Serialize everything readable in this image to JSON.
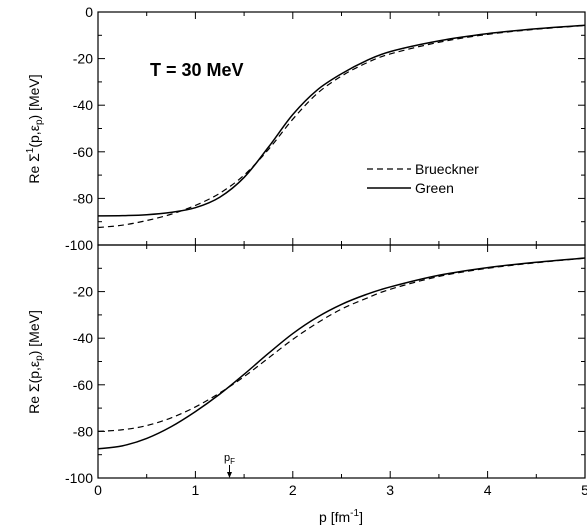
{
  "chart_data": [
    {
      "type": "line",
      "panel": "top",
      "ylabel_main": "Re Σ",
      "ylabel_sup": "1",
      "ylabel_args": "(p,ε",
      "ylabel_argsub": "p",
      "ylabel_close": ")",
      "ylabel_units": " [MeV]",
      "xlim": [
        0,
        5
      ],
      "ylim": [
        -100,
        0
      ],
      "xticks": [
        0,
        1,
        2,
        3,
        4,
        5
      ],
      "yticks": [
        0,
        -20,
        -40,
        -60,
        -80,
        -100
      ],
      "ytick_labels": [
        "0",
        "-20",
        "-40",
        "-60",
        "-80",
        "-100"
      ],
      "annotation": "T = 30 MeV",
      "legend_placement": "middle-right",
      "series": [
        {
          "name": "Brueckner",
          "style": "dashed",
          "x": [
            0,
            0.25,
            0.5,
            0.75,
            1.0,
            1.25,
            1.5,
            1.75,
            2.0,
            2.25,
            2.5,
            2.75,
            3.0,
            3.5,
            4.0,
            4.5,
            5.0
          ],
          "y": [
            -92.5,
            -91.5,
            -89.5,
            -86.8,
            -83,
            -77.8,
            -70,
            -59,
            -46,
            -35,
            -27.5,
            -22,
            -18,
            -13,
            -9.6,
            -7.4,
            -5.8
          ]
        },
        {
          "name": "Green",
          "style": "solid",
          "x": [
            0,
            0.25,
            0.5,
            0.75,
            1.0,
            1.25,
            1.5,
            1.75,
            2.0,
            2.25,
            2.5,
            2.75,
            3.0,
            3.5,
            4.0,
            4.5,
            5.0
          ],
          "y": [
            -87.5,
            -87.4,
            -87,
            -86,
            -84,
            -79.5,
            -71,
            -58,
            -44,
            -33.5,
            -26.5,
            -21,
            -17,
            -12.4,
            -9.3,
            -7.2,
            -5.7
          ]
        }
      ]
    },
    {
      "type": "line",
      "panel": "bottom",
      "xlabel_main": "p [fm",
      "xlabel_sup": "-1",
      "xlabel_close": "]",
      "ylabel_main": "Re Σ(p,ε",
      "ylabel_sub": "p",
      "ylabel_close": ") [MeV]",
      "xlim": [
        0,
        5
      ],
      "ylim": [
        -100,
        0
      ],
      "xticks": [
        0,
        1,
        2,
        3,
        4,
        5
      ],
      "xtick_labels": [
        "0",
        "1",
        "2",
        "3",
        "4",
        "5"
      ],
      "yticks": [
        -20,
        -40,
        -60,
        -80,
        -100
      ],
      "ytick_labels": [
        "-20",
        "-40",
        "-60",
        "-80",
        "-100"
      ],
      "pf_label": "p",
      "pf_sub": "F",
      "pf_x": 1.35,
      "series": [
        {
          "name": "Brueckner",
          "style": "dashed",
          "x": [
            0,
            0.25,
            0.5,
            0.75,
            1.0,
            1.25,
            1.5,
            1.75,
            2.0,
            2.25,
            2.5,
            2.75,
            3.0,
            3.5,
            4.0,
            4.5,
            5.0
          ],
          "y": [
            -80,
            -79.3,
            -77.5,
            -74.2,
            -69.5,
            -63.5,
            -56.5,
            -48.5,
            -40.5,
            -33.5,
            -27.5,
            -23,
            -19,
            -13.5,
            -10,
            -7.6,
            -5.7
          ]
        },
        {
          "name": "Green",
          "style": "solid",
          "x": [
            0,
            0.25,
            0.5,
            0.75,
            1.0,
            1.25,
            1.5,
            1.75,
            2.0,
            2.25,
            2.5,
            2.75,
            3.0,
            3.5,
            4.0,
            4.5,
            5.0
          ],
          "y": [
            -87.5,
            -86.2,
            -83,
            -78,
            -71.5,
            -64,
            -55.5,
            -46.5,
            -38,
            -31,
            -25.5,
            -21.3,
            -18,
            -13,
            -9.7,
            -7.4,
            -5.6
          ]
        }
      ]
    }
  ]
}
